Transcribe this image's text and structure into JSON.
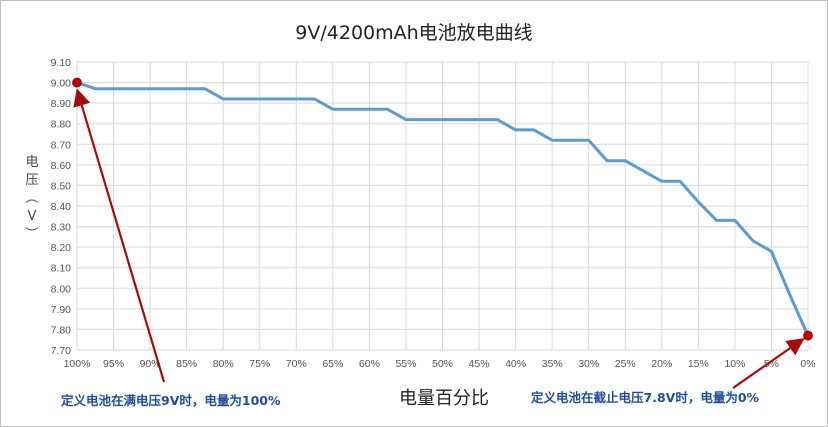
{
  "chart_data": {
    "type": "line",
    "title": "9V/4200mAh电池放电曲线",
    "xlabel": "电量百分比",
    "ylabel": "电压（V）",
    "ylim": [
      7.7,
      9.1
    ],
    "yticks": [
      "9.10",
      "9.00",
      "8.90",
      "8.80",
      "8.70",
      "8.60",
      "8.50",
      "8.40",
      "8.30",
      "8.20",
      "8.10",
      "8.00",
      "7.90",
      "7.80",
      "7.70"
    ],
    "xticks": [
      "100%",
      "95%",
      "90%",
      "85%",
      "80%",
      "75%",
      "70%",
      "65%",
      "60%",
      "55%",
      "50%",
      "45%",
      "40%",
      "35%",
      "30%",
      "25%",
      "20%",
      "15%",
      "10%",
      "5%",
      "0%"
    ],
    "grid": true,
    "line_color": "#5b9bd5",
    "marker_color": "#c00000",
    "series": [
      {
        "x": [
          100,
          97.5,
          95,
          92.5,
          90,
          87.5,
          85,
          82.5,
          80,
          77.5,
          75,
          72.5,
          70,
          67.5,
          65,
          62.5,
          60,
          57.5,
          55,
          52.5,
          50,
          47.5,
          45,
          42.5,
          40,
          37.5,
          35,
          32.5,
          30,
          27.5,
          25,
          22.5,
          20,
          17.5,
          15,
          12.5,
          10,
          7.5,
          5,
          2.5,
          0
        ],
        "y": [
          9.0,
          8.97,
          8.97,
          8.97,
          8.97,
          8.97,
          8.97,
          8.97,
          8.92,
          8.92,
          8.92,
          8.92,
          8.92,
          8.92,
          8.87,
          8.87,
          8.87,
          8.87,
          8.82,
          8.82,
          8.82,
          8.82,
          8.82,
          8.82,
          8.77,
          8.77,
          8.72,
          8.72,
          8.72,
          8.62,
          8.62,
          8.57,
          8.52,
          8.52,
          8.42,
          8.33,
          8.33,
          8.23,
          8.18,
          7.97,
          7.77
        ]
      }
    ],
    "endpoints": [
      {
        "x": 100,
        "y": 9.0
      },
      {
        "x": 0,
        "y": 7.77
      }
    ],
    "annotations": {
      "left": "定义电池在满电压9V时，电量为100%",
      "right": "定义电池在截止电压7.8V时，电量为0%"
    }
  }
}
